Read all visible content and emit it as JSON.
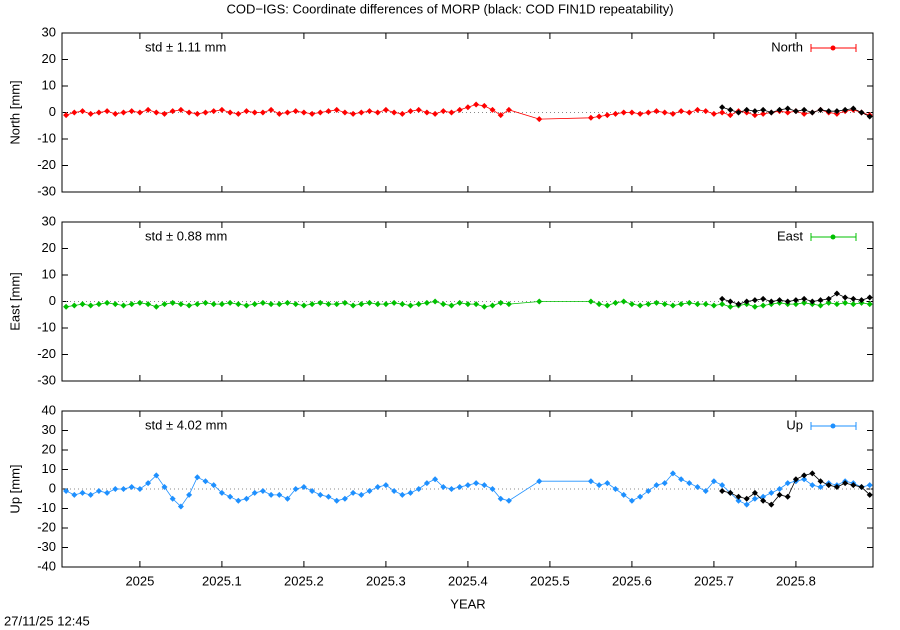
{
  "timestamp": "27/11/25 12:45",
  "chart_data": [
    {
      "type": "line",
      "title": "COD−IGS: Coordinate differences of MORP (black: COD FIN1D repeatability)",
      "ylabel": "North [mm]",
      "annotation": "std ± 1.11 mm",
      "ylim": [
        -30,
        30
      ],
      "yticks": [
        30,
        20,
        10,
        0,
        -10,
        -20,
        -30
      ],
      "xlim": [
        2024.905,
        2025.894
      ],
      "xticks": [
        2025,
        2025.1,
        2025.2,
        2025.3,
        2025.4,
        2025.5,
        2025.6,
        2025.7,
        2025.8
      ],
      "series": [
        {
          "name": "North",
          "color": "#ff0000",
          "x": [
            2024.91,
            2024.92,
            2024.93,
            2024.94,
            2024.95,
            2024.96,
            2024.97,
            2024.98,
            2024.99,
            2025,
            2025.01,
            2025.02,
            2025.03,
            2025.04,
            2025.05,
            2025.06,
            2025.07,
            2025.08,
            2025.09,
            2025.1,
            2025.11,
            2025.12,
            2025.13,
            2025.14,
            2025.15,
            2025.16,
            2025.17,
            2025.18,
            2025.19,
            2025.2,
            2025.21,
            2025.22,
            2025.23,
            2025.24,
            2025.25,
            2025.26,
            2025.27,
            2025.28,
            2025.29,
            2025.3,
            2025.31,
            2025.32,
            2025.33,
            2025.34,
            2025.35,
            2025.36,
            2025.37,
            2025.38,
            2025.39,
            2025.4,
            2025.41,
            2025.42,
            2025.43,
            2025.44,
            2025.45,
            2025.487,
            2025.55,
            2025.56,
            2025.57,
            2025.58,
            2025.59,
            2025.6,
            2025.61,
            2025.62,
            2025.63,
            2025.64,
            2025.65,
            2025.66,
            2025.67,
            2025.68,
            2025.69,
            2025.7,
            2025.71,
            2025.72,
            2025.73,
            2025.74,
            2025.75,
            2025.76,
            2025.77,
            2025.78,
            2025.79,
            2025.8,
            2025.81,
            2025.82,
            2025.83,
            2025.84,
            2025.85,
            2025.86,
            2025.87,
            2025.88,
            2025.89
          ],
          "values": [
            -1,
            0,
            0.5,
            -0.5,
            0,
            0.5,
            -0.5,
            0,
            0.5,
            0,
            1,
            0,
            -0.5,
            0.5,
            1,
            0,
            -0.5,
            0,
            0.5,
            1,
            0,
            -0.5,
            0.5,
            0,
            0,
            1,
            -0.5,
            0,
            0.5,
            0,
            -0.5,
            0,
            0.5,
            1,
            0,
            -0.5,
            0,
            0.5,
            0,
            1,
            0,
            -0.5,
            0.5,
            1,
            0,
            -0.5,
            0.5,
            0,
            1,
            2,
            3,
            2.5,
            1,
            -1,
            1,
            -2.5,
            -2,
            -1.5,
            -1,
            -0.5,
            0,
            0,
            -0.5,
            0,
            0.5,
            0,
            -0.5,
            0.5,
            0,
            1,
            0.5,
            -0.5,
            0,
            -1,
            0.5,
            0,
            -1,
            -0.5,
            0,
            0.5,
            0,
            0.5,
            -0.5,
            0,
            1,
            0,
            -0.5,
            0.5,
            1,
            0,
            -1
          ]
        },
        {
          "color": "#000000",
          "x": [
            2025.71,
            2025.72,
            2025.73,
            2025.74,
            2025.75,
            2025.76,
            2025.77,
            2025.78,
            2025.79,
            2025.8,
            2025.81,
            2025.82,
            2025.83,
            2025.84,
            2025.85,
            2025.86,
            2025.87,
            2025.88,
            2025.89
          ],
          "values": [
            2,
            1,
            0,
            1,
            0.5,
            1,
            0,
            1,
            1.5,
            0.5,
            1,
            0,
            1,
            0.5,
            0.5,
            1,
            1.5,
            0,
            -1.5
          ]
        }
      ]
    },
    {
      "type": "line",
      "ylabel": "East [mm]",
      "annotation": "std ± 0.88 mm",
      "ylim": [
        -30,
        30
      ],
      "yticks": [
        30,
        20,
        10,
        0,
        -10,
        -20,
        -30
      ],
      "xlim": [
        2024.905,
        2025.894
      ],
      "xticks": [
        2025,
        2025.1,
        2025.2,
        2025.3,
        2025.4,
        2025.5,
        2025.6,
        2025.7,
        2025.8
      ],
      "series": [
        {
          "name": "East",
          "color": "#00c000",
          "x": [
            2024.91,
            2024.92,
            2024.93,
            2024.94,
            2024.95,
            2024.96,
            2024.97,
            2024.98,
            2024.99,
            2025,
            2025.01,
            2025.02,
            2025.03,
            2025.04,
            2025.05,
            2025.06,
            2025.07,
            2025.08,
            2025.09,
            2025.1,
            2025.11,
            2025.12,
            2025.13,
            2025.14,
            2025.15,
            2025.16,
            2025.17,
            2025.18,
            2025.19,
            2025.2,
            2025.21,
            2025.22,
            2025.23,
            2025.24,
            2025.25,
            2025.26,
            2025.27,
            2025.28,
            2025.29,
            2025.3,
            2025.31,
            2025.32,
            2025.33,
            2025.34,
            2025.35,
            2025.36,
            2025.37,
            2025.38,
            2025.39,
            2025.4,
            2025.41,
            2025.42,
            2025.43,
            2025.44,
            2025.45,
            2025.487,
            2025.55,
            2025.56,
            2025.57,
            2025.58,
            2025.59,
            2025.6,
            2025.61,
            2025.62,
            2025.63,
            2025.64,
            2025.65,
            2025.66,
            2025.67,
            2025.68,
            2025.69,
            2025.7,
            2025.71,
            2025.72,
            2025.73,
            2025.74,
            2025.75,
            2025.76,
            2025.77,
            2025.78,
            2025.79,
            2025.8,
            2025.81,
            2025.82,
            2025.83,
            2025.84,
            2025.85,
            2025.86,
            2025.87,
            2025.88,
            2025.89
          ],
          "values": [
            -2,
            -1.5,
            -1,
            -1.5,
            -1,
            -0.5,
            -1,
            -1.5,
            -1,
            -0.5,
            -1,
            -2,
            -1,
            -0.5,
            -1,
            -1.5,
            -1,
            -0.5,
            -1,
            -1,
            -0.5,
            -1,
            -1.5,
            -1,
            -0.5,
            -1,
            -1,
            -0.5,
            -1,
            -1.5,
            -1,
            -0.5,
            -1,
            -1,
            -0.5,
            -1.5,
            -1,
            -0.5,
            -1,
            -1,
            -0.5,
            -1,
            -1.5,
            -1,
            -0.5,
            0,
            -1,
            -1.5,
            -0.5,
            -1,
            -1,
            -2,
            -1.5,
            -0.5,
            -1,
            0,
            0,
            -1,
            -1.5,
            -0.5,
            0,
            -1,
            -1.5,
            -1,
            -0.5,
            -1,
            -1.5,
            -1,
            -0.5,
            -1,
            -1,
            -1.5,
            -1,
            -2,
            -1.5,
            -1,
            -2,
            -1.5,
            -1,
            -0.5,
            -1,
            -1,
            -0.5,
            -1,
            -1.5,
            -0.5,
            -1,
            -0.5,
            -1,
            -0.5,
            -1
          ]
        },
        {
          "color": "#000000",
          "x": [
            2025.71,
            2025.72,
            2025.73,
            2025.74,
            2025.75,
            2025.76,
            2025.77,
            2025.78,
            2025.79,
            2025.8,
            2025.81,
            2025.82,
            2025.83,
            2025.84,
            2025.85,
            2025.86,
            2025.87,
            2025.88,
            2025.89
          ],
          "values": [
            1,
            0,
            -1,
            0,
            0.5,
            1,
            0,
            0.5,
            0,
            0.5,
            1,
            0,
            0.5,
            1,
            3,
            1.5,
            1,
            0.5,
            1.5
          ]
        }
      ]
    },
    {
      "type": "line",
      "ylabel": "Up [mm]",
      "annotation": "std ± 4.02 mm",
      "xlabel": "YEAR",
      "ylim": [
        -40,
        40
      ],
      "yticks": [
        40,
        30,
        20,
        10,
        0,
        -10,
        -20,
        -30,
        -40
      ],
      "xlim": [
        2024.905,
        2025.894
      ],
      "xticks": [
        2025,
        2025.1,
        2025.2,
        2025.3,
        2025.4,
        2025.5,
        2025.6,
        2025.7,
        2025.8
      ],
      "series": [
        {
          "name": "Up",
          "color": "#1e90ff",
          "x": [
            2024.91,
            2024.92,
            2024.93,
            2024.94,
            2024.95,
            2024.96,
            2024.97,
            2024.98,
            2024.99,
            2025,
            2025.01,
            2025.02,
            2025.03,
            2025.04,
            2025.05,
            2025.06,
            2025.07,
            2025.08,
            2025.09,
            2025.1,
            2025.11,
            2025.12,
            2025.13,
            2025.14,
            2025.15,
            2025.16,
            2025.17,
            2025.18,
            2025.19,
            2025.2,
            2025.21,
            2025.22,
            2025.23,
            2025.24,
            2025.25,
            2025.26,
            2025.27,
            2025.28,
            2025.29,
            2025.3,
            2025.31,
            2025.32,
            2025.33,
            2025.34,
            2025.35,
            2025.36,
            2025.37,
            2025.38,
            2025.39,
            2025.4,
            2025.41,
            2025.42,
            2025.43,
            2025.44,
            2025.45,
            2025.487,
            2025.55,
            2025.56,
            2025.57,
            2025.58,
            2025.59,
            2025.6,
            2025.61,
            2025.62,
            2025.63,
            2025.64,
            2025.65,
            2025.66,
            2025.67,
            2025.68,
            2025.69,
            2025.7,
            2025.71,
            2025.72,
            2025.73,
            2025.74,
            2025.75,
            2025.76,
            2025.77,
            2025.78,
            2025.79,
            2025.8,
            2025.81,
            2025.82,
            2025.83,
            2025.84,
            2025.85,
            2025.86,
            2025.87,
            2025.88,
            2025.89
          ],
          "values": [
            -1,
            -3,
            -2,
            -3,
            -1,
            -2,
            0,
            0,
            1,
            0,
            3,
            7,
            1,
            -5,
            -9,
            -3,
            6,
            4,
            2,
            -2,
            -4,
            -6,
            -5,
            -2,
            -1,
            -3,
            -3,
            -5,
            0,
            1,
            -1,
            -3,
            -4,
            -6,
            -5,
            -2,
            -3,
            -1,
            1,
            2,
            -1,
            -3,
            -2,
            0,
            3,
            5,
            1,
            0,
            1,
            2,
            3,
            2,
            0,
            -5,
            -6,
            4,
            4,
            2,
            3,
            0,
            -3,
            -6,
            -4,
            -1,
            2,
            3,
            8,
            5,
            3,
            1,
            -1,
            4,
            2,
            -2,
            -6,
            -8,
            -5,
            -4,
            -2,
            0,
            3,
            4,
            5,
            2,
            1,
            3,
            2,
            4,
            3,
            1,
            2
          ]
        },
        {
          "color": "#000000",
          "x": [
            2025.71,
            2025.72,
            2025.73,
            2025.74,
            2025.75,
            2025.76,
            2025.77,
            2025.78,
            2025.79,
            2025.8,
            2025.81,
            2025.82,
            2025.83,
            2025.84,
            2025.85,
            2025.86,
            2025.87,
            2025.88,
            2025.89
          ],
          "values": [
            -1,
            -2,
            -4,
            -5,
            -2,
            -6,
            -8,
            -3,
            -4,
            5,
            7,
            8,
            4,
            2,
            1,
            3,
            2,
            1,
            -3
          ]
        }
      ]
    }
  ]
}
